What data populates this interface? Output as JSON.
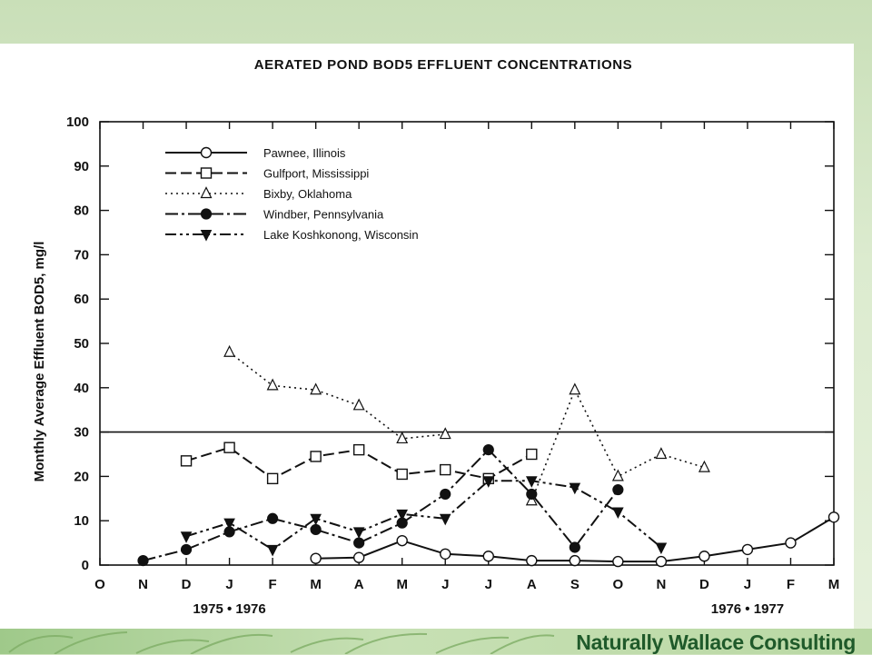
{
  "branding": {
    "text": "Naturally Wallace Consulting"
  },
  "chart_data": {
    "type": "line",
    "title": "AERATED POND BOD5 EFFLUENT CONCENTRATIONS",
    "ylabel": "Monthly Average Effluent BOD5, mg/l",
    "xlabel": "",
    "ylim": [
      0,
      100
    ],
    "yticks": [
      "0",
      "10",
      "20",
      "30",
      "40",
      "50",
      "60",
      "70",
      "80",
      "90",
      "100"
    ],
    "categories": [
      "O",
      "N",
      "D",
      "J",
      "F",
      "M",
      "A",
      "M",
      "J",
      "J",
      "A",
      "S",
      "O",
      "N",
      "D",
      "J",
      "F",
      "M"
    ],
    "period_labels": [
      "1975 • 1976",
      "1976 • 1977"
    ],
    "grid": false,
    "legend_position": "top-left",
    "reference_line": 30,
    "series": [
      {
        "name": "Pawnee, Illinois",
        "marker": "circle-open",
        "style": "solid",
        "values": [
          null,
          null,
          null,
          null,
          null,
          1.5,
          1.7,
          5.5,
          2.5,
          2.0,
          1.0,
          1.0,
          0.8,
          0.8,
          2.0,
          3.5,
          5.0,
          10.8
        ]
      },
      {
        "name": "Gulfport, Mississippi",
        "marker": "square-open",
        "style": "dashed",
        "values": [
          null,
          null,
          23.5,
          26.5,
          19.5,
          24.5,
          26.0,
          20.5,
          21.5,
          19.5,
          25.0,
          null,
          null,
          null,
          null,
          null,
          null,
          null
        ]
      },
      {
        "name": "Bixby, Oklahoma",
        "marker": "triangle-open",
        "style": "dotted",
        "values": [
          null,
          null,
          null,
          48.0,
          40.5,
          39.5,
          36.0,
          28.5,
          29.5,
          null,
          14.5,
          39.5,
          20.0,
          25.0,
          22.0,
          null,
          null,
          null
        ]
      },
      {
        "name": "Windber, Pennsylvania",
        "marker": "circle-filled",
        "style": "dash-dot",
        "values": [
          null,
          1.0,
          3.5,
          7.5,
          10.5,
          8.0,
          5.0,
          9.5,
          16.0,
          26.0,
          16.0,
          4.0,
          17.0,
          null,
          null,
          null,
          null,
          null
        ]
      },
      {
        "name": "Lake Koshkonong, Wisconsin",
        "marker": "triangle-down-filled",
        "style": "dash-dot-dot",
        "values": [
          null,
          null,
          6.5,
          9.5,
          3.5,
          10.5,
          7.5,
          11.5,
          10.5,
          19.0,
          19.0,
          17.5,
          12.0,
          4.0,
          null,
          null,
          null,
          null
        ]
      }
    ]
  }
}
